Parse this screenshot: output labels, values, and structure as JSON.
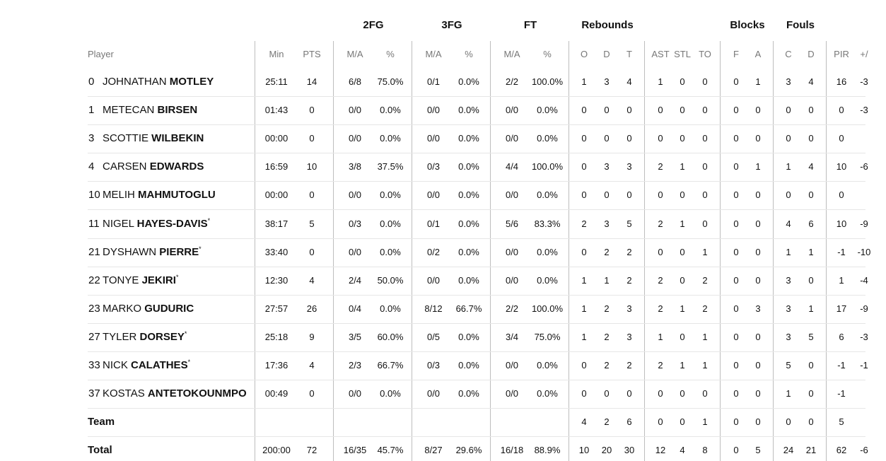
{
  "groups": [
    {
      "key": "g2fg",
      "label": "2FG"
    },
    {
      "key": "g3fg",
      "label": "3FG"
    },
    {
      "key": "gft",
      "label": "FT"
    },
    {
      "key": "greb",
      "label": "Rebounds"
    },
    {
      "key": "gblk",
      "label": "Blocks"
    },
    {
      "key": "gfoul",
      "label": "Fouls"
    }
  ],
  "columns": [
    "Min",
    "PTS",
    "M/A",
    "%",
    "M/A",
    "%",
    "M/A",
    "%",
    "O",
    "D",
    "T",
    "AST",
    "STL",
    "TO",
    "F",
    "A",
    "C",
    "D",
    "PIR",
    "+/"
  ],
  "player_header": "Player",
  "players": [
    {
      "num": "0",
      "first": "JOHNATHAN",
      "last": "MOTLEY",
      "starter": false,
      "stats": [
        "25:11",
        "14",
        "6/8",
        "75.0%",
        "0/1",
        "0.0%",
        "2/2",
        "100.0%",
        "1",
        "3",
        "4",
        "1",
        "0",
        "0",
        "0",
        "1",
        "3",
        "4",
        "16",
        "-3"
      ]
    },
    {
      "num": "1",
      "first": "METECAN",
      "last": "BIRSEN",
      "starter": false,
      "stats": [
        "01:43",
        "0",
        "0/0",
        "0.0%",
        "0/0",
        "0.0%",
        "0/0",
        "0.0%",
        "0",
        "0",
        "0",
        "0",
        "0",
        "0",
        "0",
        "0",
        "0",
        "0",
        "0",
        "-3"
      ]
    },
    {
      "num": "3",
      "first": "SCOTTIE",
      "last": "WILBEKIN",
      "starter": false,
      "stats": [
        "00:00",
        "0",
        "0/0",
        "0.0%",
        "0/0",
        "0.0%",
        "0/0",
        "0.0%",
        "0",
        "0",
        "0",
        "0",
        "0",
        "0",
        "0",
        "0",
        "0",
        "0",
        "0",
        ""
      ]
    },
    {
      "num": "4",
      "first": "CARSEN",
      "last": "EDWARDS",
      "starter": false,
      "stats": [
        "16:59",
        "10",
        "3/8",
        "37.5%",
        "0/3",
        "0.0%",
        "4/4",
        "100.0%",
        "0",
        "3",
        "3",
        "2",
        "1",
        "0",
        "0",
        "1",
        "1",
        "4",
        "10",
        "-6"
      ]
    },
    {
      "num": "10",
      "first": "MELIH",
      "last": "MAHMUTOGLU",
      "starter": false,
      "stats": [
        "00:00",
        "0",
        "0/0",
        "0.0%",
        "0/0",
        "0.0%",
        "0/0",
        "0.0%",
        "0",
        "0",
        "0",
        "0",
        "0",
        "0",
        "0",
        "0",
        "0",
        "0",
        "0",
        ""
      ]
    },
    {
      "num": "11",
      "first": "NIGEL",
      "last": "HAYES-DAVIS",
      "starter": true,
      "stats": [
        "38:17",
        "5",
        "0/3",
        "0.0%",
        "0/1",
        "0.0%",
        "5/6",
        "83.3%",
        "2",
        "3",
        "5",
        "2",
        "1",
        "0",
        "0",
        "0",
        "4",
        "6",
        "10",
        "-9"
      ]
    },
    {
      "num": "21",
      "first": "DYSHAWN",
      "last": "PIERRE",
      "starter": true,
      "stats": [
        "33:40",
        "0",
        "0/0",
        "0.0%",
        "0/2",
        "0.0%",
        "0/0",
        "0.0%",
        "0",
        "2",
        "2",
        "0",
        "0",
        "1",
        "0",
        "0",
        "1",
        "1",
        "-1",
        "-10"
      ]
    },
    {
      "num": "22",
      "first": "TONYE",
      "last": "JEKIRI",
      "starter": true,
      "stats": [
        "12:30",
        "4",
        "2/4",
        "50.0%",
        "0/0",
        "0.0%",
        "0/0",
        "0.0%",
        "1",
        "1",
        "2",
        "2",
        "0",
        "2",
        "0",
        "0",
        "3",
        "0",
        "1",
        "-4"
      ]
    },
    {
      "num": "23",
      "first": "MARKO",
      "last": "GUDURIC",
      "starter": false,
      "stats": [
        "27:57",
        "26",
        "0/4",
        "0.0%",
        "8/12",
        "66.7%",
        "2/2",
        "100.0%",
        "1",
        "2",
        "3",
        "2",
        "1",
        "2",
        "0",
        "3",
        "3",
        "1",
        "17",
        "-9"
      ]
    },
    {
      "num": "27",
      "first": "TYLER",
      "last": "DORSEY",
      "starter": true,
      "stats": [
        "25:18",
        "9",
        "3/5",
        "60.0%",
        "0/5",
        "0.0%",
        "3/4",
        "75.0%",
        "1",
        "2",
        "3",
        "1",
        "0",
        "1",
        "0",
        "0",
        "3",
        "5",
        "6",
        "-3"
      ]
    },
    {
      "num": "33",
      "first": "NICK",
      "last": "CALATHES",
      "starter": true,
      "stats": [
        "17:36",
        "4",
        "2/3",
        "66.7%",
        "0/3",
        "0.0%",
        "0/0",
        "0.0%",
        "0",
        "2",
        "2",
        "2",
        "1",
        "1",
        "0",
        "0",
        "5",
        "0",
        "-1",
        "-1"
      ]
    },
    {
      "num": "37",
      "first": "KOSTAS",
      "last": "ANTETOKOUNMPO",
      "starter": false,
      "stats": [
        "00:49",
        "0",
        "0/0",
        "0.0%",
        "0/0",
        "0.0%",
        "0/0",
        "0.0%",
        "0",
        "0",
        "0",
        "0",
        "0",
        "0",
        "0",
        "0",
        "1",
        "0",
        "-1",
        ""
      ]
    }
  ],
  "team_row": {
    "label": "Team",
    "stats": [
      "",
      "",
      "",
      "",
      "",
      "",
      "",
      "",
      "4",
      "2",
      "6",
      "0",
      "0",
      "1",
      "0",
      "0",
      "0",
      "0",
      "5",
      ""
    ]
  },
  "total_row": {
    "label": "Total",
    "stats": [
      "200:00",
      "72",
      "16/35",
      "45.7%",
      "8/27",
      "29.6%",
      "16/18",
      "88.9%",
      "10",
      "20",
      "30",
      "12",
      "4",
      "8",
      "0",
      "5",
      "24",
      "21",
      "62",
      "-6"
    ]
  },
  "star_glyph": "*"
}
